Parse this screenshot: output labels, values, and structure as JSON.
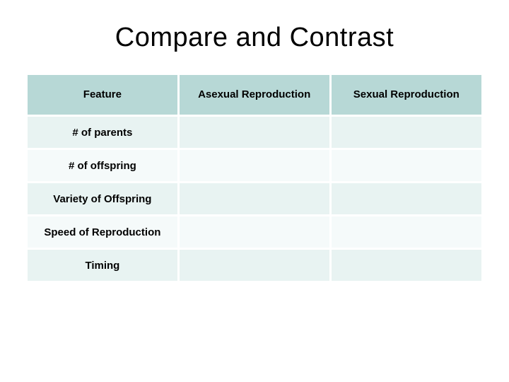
{
  "title": "Compare and Contrast",
  "table": {
    "columns": [
      "Feature",
      "Asexual Reproduction",
      "Sexual Reproduction"
    ],
    "rows": [
      {
        "label": "# of parents",
        "cells": [
          "",
          ""
        ]
      },
      {
        "label": "# of offspring",
        "cells": [
          "",
          ""
        ]
      },
      {
        "label": "Variety of Offspring",
        "cells": [
          "",
          ""
        ]
      },
      {
        "label": "Speed of Reproduction",
        "cells": [
          "",
          ""
        ]
      },
      {
        "label": "Timing",
        "cells": [
          "",
          ""
        ]
      }
    ],
    "col_widths_pct": [
      33.3,
      33.3,
      33.4
    ],
    "header_bg": "#b7d8d6",
    "row_band_colors": [
      "#e8f3f2",
      "#f5fafa"
    ],
    "background_color": "#ffffff",
    "title_fontsize": 38,
    "cell_fontsize": 15,
    "text_color": "#000000"
  }
}
